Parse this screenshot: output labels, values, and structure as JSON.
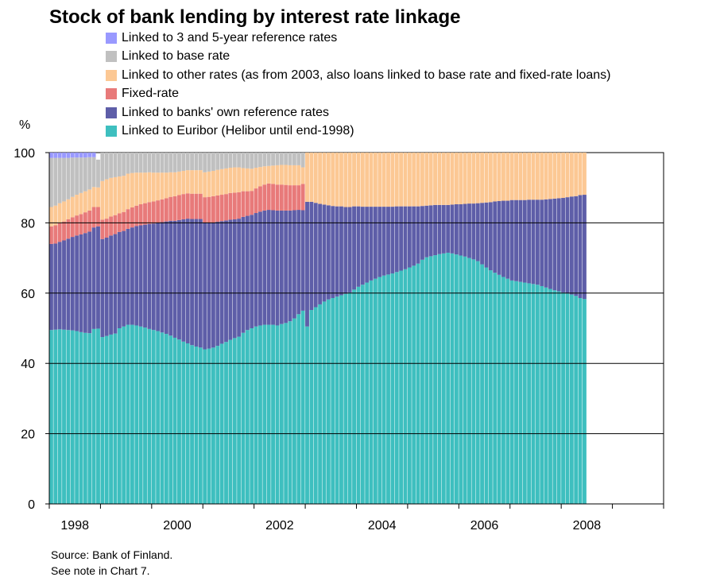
{
  "chart_data": {
    "type": "bar",
    "stacked": true,
    "title": "Stock of bank lending by interest rate linkage",
    "ylabel": "%",
    "ylim": [
      0,
      100
    ],
    "yticks": [
      "0",
      "20",
      "40",
      "60",
      "80",
      "100"
    ],
    "xticks": [
      "1998",
      "2000",
      "2002",
      "2004",
      "2006",
      "2008"
    ],
    "x_start": "1998-01",
    "x_end": "2008-06",
    "x_axis_end": "2009-12",
    "x": [
      "1998-01",
      "1998-02",
      "1998-03",
      "1998-04",
      "1998-05",
      "1998-06",
      "1998-07",
      "1998-08",
      "1998-09",
      "1998-10",
      "1998-11",
      "1998-12",
      "1999-01",
      "1999-02",
      "1999-03",
      "1999-04",
      "1999-05",
      "1999-06",
      "1999-07",
      "1999-08",
      "1999-09",
      "1999-10",
      "1999-11",
      "1999-12",
      "2000-01",
      "2000-02",
      "2000-03",
      "2000-04",
      "2000-05",
      "2000-06",
      "2000-07",
      "2000-08",
      "2000-09",
      "2000-10",
      "2000-11",
      "2000-12",
      "2001-01",
      "2001-02",
      "2001-03",
      "2001-04",
      "2001-05",
      "2001-06",
      "2001-07",
      "2001-08",
      "2001-09",
      "2001-10",
      "2001-11",
      "2001-12",
      "2002-01",
      "2002-02",
      "2002-03",
      "2002-04",
      "2002-05",
      "2002-06",
      "2002-07",
      "2002-08",
      "2002-09",
      "2002-10",
      "2002-11",
      "2002-12",
      "2003-01",
      "2003-02",
      "2003-03",
      "2003-04",
      "2003-05",
      "2003-06",
      "2003-07",
      "2003-08",
      "2003-09",
      "2003-10",
      "2003-11",
      "2003-12",
      "2004-01",
      "2004-02",
      "2004-03",
      "2004-04",
      "2004-05",
      "2004-06",
      "2004-07",
      "2004-08",
      "2004-09",
      "2004-10",
      "2004-11",
      "2004-12",
      "2005-01",
      "2005-02",
      "2005-03",
      "2005-04",
      "2005-05",
      "2005-06",
      "2005-07",
      "2005-08",
      "2005-09",
      "2005-10",
      "2005-11",
      "2005-12",
      "2006-01",
      "2006-02",
      "2006-03",
      "2006-04",
      "2006-05",
      "2006-06",
      "2006-07",
      "2006-08",
      "2006-09",
      "2006-10",
      "2006-11",
      "2006-12",
      "2007-01",
      "2007-02",
      "2007-03",
      "2007-04",
      "2007-05",
      "2007-06",
      "2007-07",
      "2007-08",
      "2007-09",
      "2007-10",
      "2007-11",
      "2007-12",
      "2008-01",
      "2008-02",
      "2008-03",
      "2008-04",
      "2008-05",
      "2008-06"
    ],
    "grid": true,
    "legend_position": "top",
    "series": [
      {
        "name": "Linked to Euribor (Helibor until end-1998)",
        "color": "#3ebfbf",
        "values": [
          49.5,
          49.6,
          49.7,
          49.6,
          49.5,
          49.4,
          49.2,
          48.9,
          48.7,
          48.6,
          49.8,
          49.9,
          47.5,
          47.8,
          48.2,
          48.5,
          50.0,
          50.5,
          51.0,
          51.0,
          50.8,
          50.5,
          50.2,
          49.8,
          49.5,
          49.2,
          48.8,
          48.4,
          47.9,
          47.3,
          46.8,
          46.2,
          45.7,
          45.2,
          44.8,
          44.5,
          44.0,
          44.2,
          44.5,
          45.0,
          45.6,
          46.1,
          46.7,
          47.2,
          47.6,
          48.7,
          49.5,
          50.0,
          50.5,
          50.8,
          51.0,
          51.0,
          51.0,
          50.8,
          51.2,
          51.5,
          52.0,
          52.8,
          54.0,
          55.0,
          50.5,
          55.2,
          56.0,
          56.8,
          57.6,
          58.2,
          58.6,
          59.0,
          59.4,
          59.8,
          60.2,
          61.0,
          61.8,
          62.4,
          63.0,
          63.6,
          64.1,
          64.6,
          65.0,
          65.3,
          65.6,
          66.0,
          66.4,
          66.8,
          67.3,
          67.8,
          68.4,
          69.5,
          70.2,
          70.5,
          70.8,
          71.1,
          71.3,
          71.5,
          71.3,
          71.0,
          70.7,
          70.4,
          70.0,
          69.6,
          69.1,
          68.2,
          67.3,
          66.5,
          65.8,
          65.2,
          64.6,
          64.1,
          63.6,
          63.4,
          63.2,
          63.0,
          62.8,
          62.6,
          62.4,
          62.0,
          61.6,
          61.2,
          60.8,
          60.5,
          60.2,
          59.9,
          59.6,
          59.2,
          58.6,
          58.3
        ]
      },
      {
        "name": "Linked to banks' own reference rates",
        "color": "#5e5ea8",
        "values": [
          24.5,
          24.5,
          24.9,
          25.4,
          26.0,
          26.6,
          27.2,
          27.8,
          28.4,
          28.9,
          28.9,
          29.1,
          27.9,
          28.0,
          28.2,
          28.3,
          27.4,
          27.2,
          27.3,
          27.7,
          28.3,
          28.8,
          29.3,
          29.9,
          30.3,
          30.8,
          31.4,
          32.0,
          32.7,
          33.3,
          34.0,
          34.8,
          35.5,
          35.9,
          36.3,
          36.6,
          36.0,
          35.8,
          35.6,
          35.3,
          34.9,
          34.6,
          34.2,
          33.8,
          33.6,
          33.0,
          32.5,
          32.3,
          32.3,
          32.4,
          32.5,
          32.7,
          32.6,
          32.7,
          32.3,
          32.0,
          31.5,
          30.8,
          29.7,
          28.6,
          35.5,
          30.8,
          29.7,
          28.6,
          27.6,
          26.8,
          26.2,
          25.7,
          25.3,
          24.7,
          24.3,
          23.7,
          22.9,
          22.2,
          21.6,
          21.0,
          20.5,
          20.0,
          19.6,
          19.3,
          19.0,
          18.7,
          18.3,
          17.9,
          17.4,
          16.9,
          16.3,
          15.3,
          14.7,
          14.5,
          14.3,
          14.0,
          13.8,
          13.6,
          13.9,
          14.3,
          14.6,
          15.0,
          15.5,
          15.9,
          16.5,
          17.5,
          18.5,
          19.4,
          20.3,
          21.0,
          21.7,
          22.2,
          22.9,
          23.1,
          23.3,
          23.5,
          23.8,
          24.0,
          24.2,
          24.6,
          25.1,
          25.6,
          26.1,
          26.5,
          26.9,
          27.4,
          27.9,
          28.4,
          29.3,
          29.7
        ]
      },
      {
        "name": "Fixed-rate",
        "color": "#e87a7a",
        "values": [
          5.0,
          5.2,
          5.3,
          5.4,
          5.5,
          5.6,
          5.7,
          5.8,
          5.9,
          6.0,
          5.8,
          5.5,
          5.5,
          5.4,
          5.4,
          5.4,
          5.3,
          5.4,
          5.6,
          5.7,
          5.8,
          6.0,
          6.1,
          6.2,
          6.3,
          6.4,
          6.5,
          6.6,
          6.8,
          7.0,
          7.1,
          7.2,
          7.2,
          7.2,
          7.2,
          7.2,
          7.3,
          7.4,
          7.5,
          7.5,
          7.5,
          7.5,
          7.6,
          7.6,
          7.5,
          7.3,
          7.0,
          6.8,
          7.0,
          7.2,
          7.4,
          7.5,
          7.5,
          7.4,
          7.4,
          7.3,
          7.2,
          7.1,
          7.0,
          7.5,
          0,
          0,
          0,
          0,
          0,
          0,
          0,
          0,
          0,
          0,
          0,
          0,
          0,
          0,
          0,
          0,
          0,
          0,
          0,
          0,
          0,
          0,
          0,
          0,
          0,
          0,
          0,
          0,
          0,
          0,
          0,
          0,
          0,
          0,
          0,
          0,
          0,
          0,
          0,
          0,
          0,
          0,
          0,
          0,
          0,
          0,
          0,
          0,
          0,
          0,
          0,
          0,
          0,
          0,
          0,
          0,
          0,
          0,
          0,
          0,
          0,
          0,
          0,
          0,
          0,
          0
        ]
      },
      {
        "name": "Linked to other rates (as from 2003, also loans linked to base rate and fixed-rate loans)",
        "color": "#fcc894",
        "values": [
          5.5,
          5.6,
          5.7,
          5.7,
          5.7,
          5.8,
          5.9,
          6.0,
          6.0,
          6.0,
          5.7,
          5.6,
          11.0,
          11.2,
          11.0,
          10.8,
          10.5,
          10.3,
          10.1,
          9.8,
          9.4,
          9.0,
          8.7,
          8.5,
          8.2,
          7.9,
          7.6,
          7.3,
          7.0,
          6.8,
          6.7,
          6.6,
          6.6,
          6.7,
          6.7,
          6.7,
          7.1,
          7.2,
          7.2,
          7.3,
          7.3,
          7.3,
          7.2,
          7.2,
          7.1,
          6.6,
          6.5,
          6.3,
          5.9,
          5.5,
          5.2,
          5.0,
          5.2,
          5.5,
          5.6,
          5.7,
          5.7,
          5.7,
          5.7,
          4.7,
          14.0,
          14.0,
          14.3,
          14.6,
          14.8,
          15.0,
          15.2,
          15.3,
          15.3,
          15.5,
          15.5,
          15.3,
          15.3,
          15.4,
          15.4,
          15.4,
          15.4,
          15.4,
          15.4,
          15.4,
          15.4,
          15.3,
          15.3,
          15.3,
          15.3,
          15.3,
          15.3,
          15.2,
          15.1,
          15.0,
          14.9,
          14.9,
          14.9,
          14.9,
          14.8,
          14.7,
          14.7,
          14.6,
          14.5,
          14.5,
          14.4,
          14.3,
          14.2,
          14.1,
          13.9,
          13.8,
          13.7,
          13.7,
          13.5,
          13.5,
          13.5,
          13.5,
          13.4,
          13.4,
          13.4,
          13.4,
          13.3,
          13.2,
          13.1,
          13.0,
          12.9,
          12.7,
          12.5,
          12.4,
          12.1,
          12.0
        ]
      },
      {
        "name": "Linked to base rate",
        "color": "#c0c0c0",
        "values": [
          14.0,
          13.6,
          12.9,
          12.4,
          11.8,
          11.2,
          10.6,
          10.1,
          9.6,
          9.2,
          8.5,
          7.9,
          8.1,
          7.6,
          7.2,
          7.0,
          6.8,
          6.6,
          6.0,
          5.8,
          5.7,
          5.7,
          5.7,
          5.6,
          5.7,
          5.7,
          5.7,
          5.7,
          5.6,
          5.6,
          5.4,
          5.2,
          5.0,
          5.0,
          5.0,
          5.0,
          5.6,
          5.4,
          5.2,
          4.9,
          4.7,
          4.5,
          4.3,
          4.2,
          4.2,
          4.4,
          4.5,
          4.6,
          4.3,
          4.1,
          3.9,
          3.8,
          3.7,
          3.6,
          3.5,
          3.5,
          3.6,
          3.6,
          3.6,
          4.2,
          0,
          0,
          0,
          0,
          0,
          0,
          0,
          0,
          0,
          0,
          0,
          0,
          0,
          0,
          0,
          0,
          0,
          0,
          0,
          0,
          0,
          0,
          0,
          0,
          0,
          0,
          0,
          0,
          0,
          0,
          0,
          0,
          0,
          0,
          0,
          0,
          0,
          0,
          0,
          0,
          0,
          0,
          0,
          0,
          0,
          0,
          0,
          0,
          0,
          0,
          0,
          0,
          0,
          0,
          0,
          0,
          0,
          0,
          0,
          0,
          0,
          0,
          0,
          0,
          0,
          0
        ]
      },
      {
        "name": "Linked to 3 and 5-year reference rates",
        "color": "#9999ff",
        "values": [
          1.5,
          1.5,
          1.5,
          1.5,
          1.5,
          1.4,
          1.4,
          1.4,
          1.4,
          1.3,
          1.3,
          0,
          0,
          0,
          0,
          0,
          0,
          0,
          0,
          0,
          0,
          0,
          0,
          0,
          0,
          0,
          0,
          0,
          0,
          0,
          0,
          0,
          0,
          0,
          0,
          0,
          0,
          0,
          0,
          0,
          0,
          0,
          0,
          0,
          0,
          0,
          0,
          0,
          0,
          0,
          0,
          0,
          0,
          0,
          0,
          0,
          0,
          0,
          0,
          0,
          0,
          0,
          0,
          0,
          0,
          0,
          0,
          0,
          0,
          0,
          0,
          0,
          0,
          0,
          0,
          0,
          0,
          0,
          0,
          0,
          0,
          0,
          0,
          0,
          0,
          0,
          0,
          0,
          0,
          0,
          0,
          0,
          0,
          0,
          0,
          0,
          0,
          0,
          0,
          0,
          0,
          0,
          0,
          0,
          0,
          0,
          0,
          0,
          0,
          0,
          0,
          0,
          0,
          0,
          0,
          0,
          0,
          0,
          0,
          0,
          0,
          0,
          0,
          0,
          0,
          0
        ]
      }
    ],
    "legend_order": [
      "Linked to 3 and 5-year reference rates",
      "Linked to base rate",
      "Linked to other rates (as from 2003, also loans linked to base rate and fixed-rate loans)",
      "Fixed-rate",
      "Linked to banks' own reference rates",
      "Linked to Euribor (Helibor until end-1998)"
    ]
  },
  "source": "Source: Bank of Finland.",
  "note": "See note in Chart 7."
}
